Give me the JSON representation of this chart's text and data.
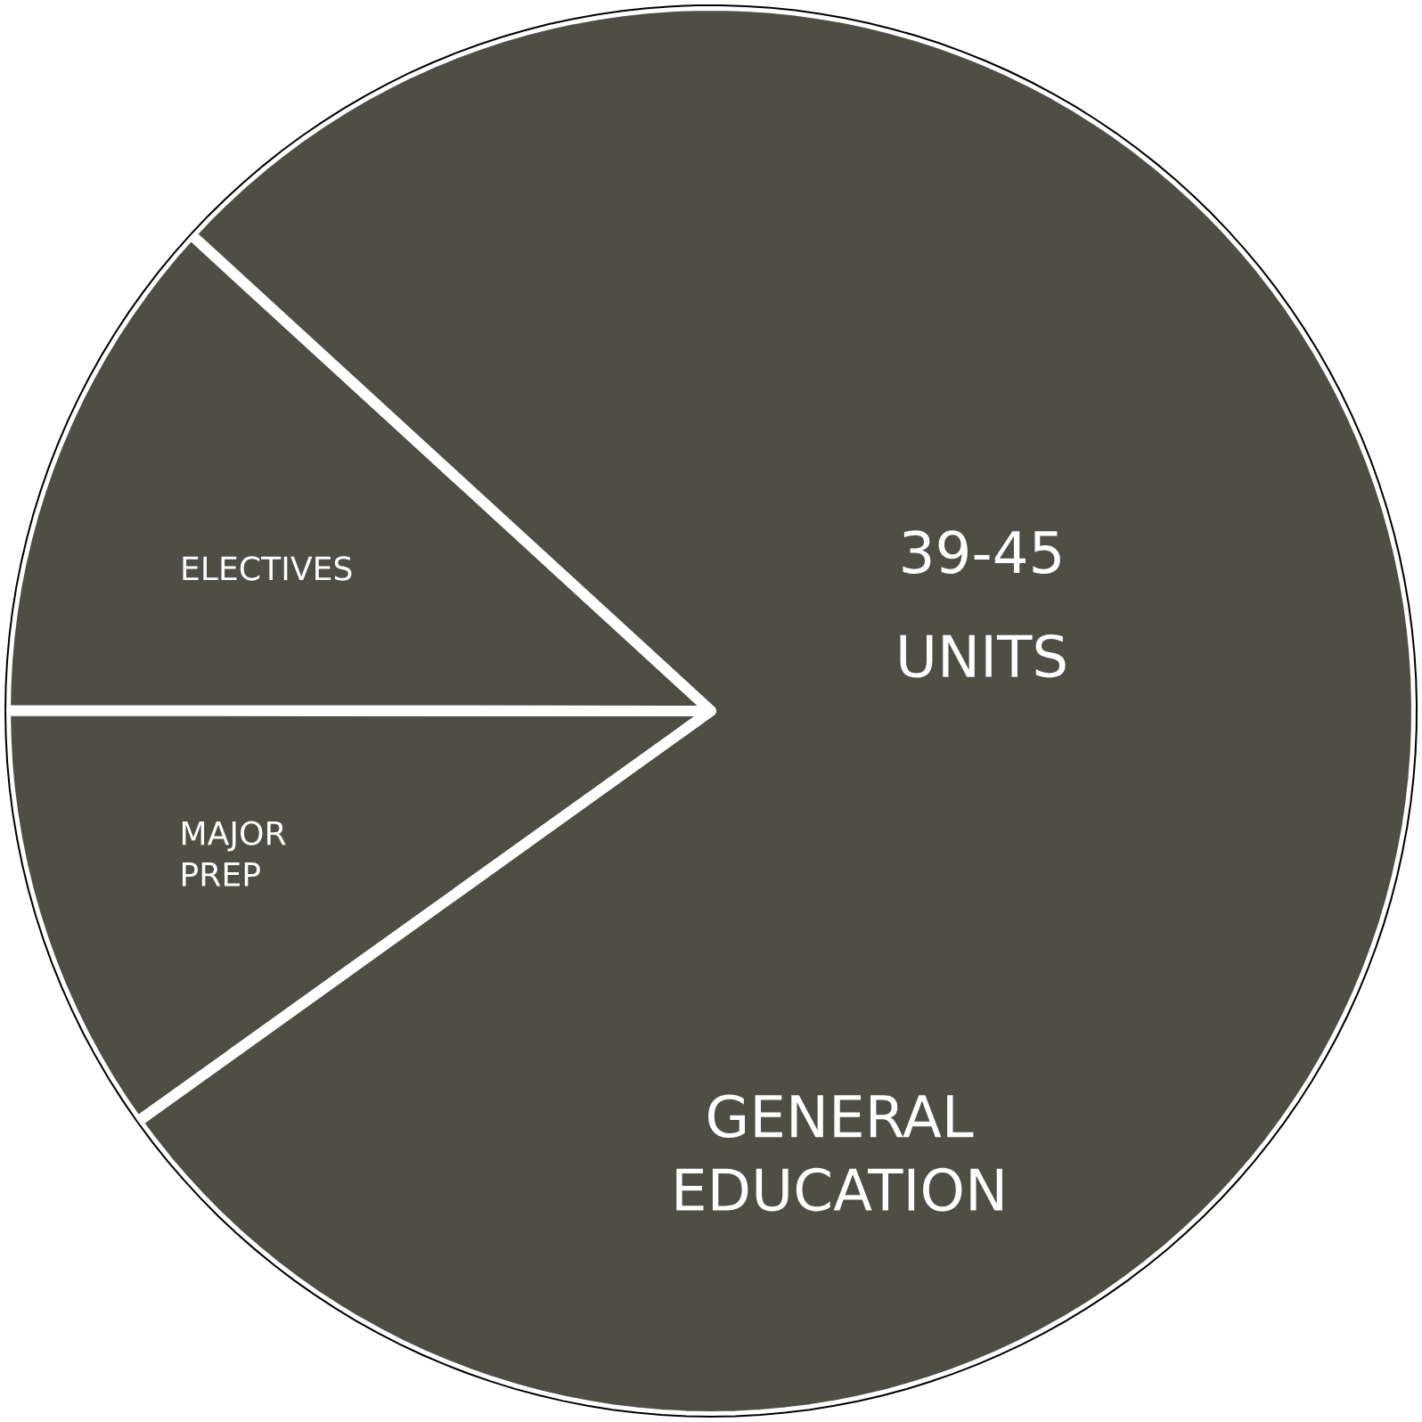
{
  "chart_data": {
    "type": "pie",
    "categories": [
      "ELECTIVES",
      "MAJOR PREP",
      "GENERAL EDUCATION"
    ],
    "values": [
      11.8,
      9.9,
      78.3
    ],
    "colors": [
      "#4f4e45",
      "#4f4e45",
      "#4f4e45"
    ],
    "annotations": [
      "39-45 UNITS"
    ]
  }
}
